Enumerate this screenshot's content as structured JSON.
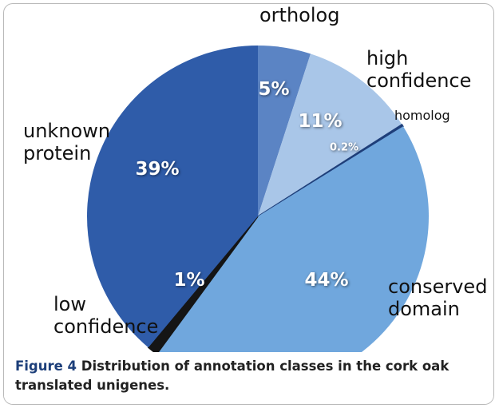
{
  "chart_data": {
    "type": "pie",
    "categories": [
      "ortholog",
      "high confidence",
      "homolog",
      "conserved domain",
      "low confidence",
      "unknown protein"
    ],
    "values": [
      5,
      11,
      0.2,
      44,
      1,
      39
    ],
    "value_labels": [
      "5%",
      "11%",
      "0.2%",
      "44%",
      "1%",
      "39%"
    ],
    "colors": [
      "#5b84c4",
      "#a9c6e8",
      "#1f3f7a",
      "#70a7dd",
      "#151515",
      "#2f5ca9"
    ]
  },
  "caption": {
    "label": "Figure 4",
    "text": "Distribution of annotation classes in the cork oak translated unigenes."
  }
}
